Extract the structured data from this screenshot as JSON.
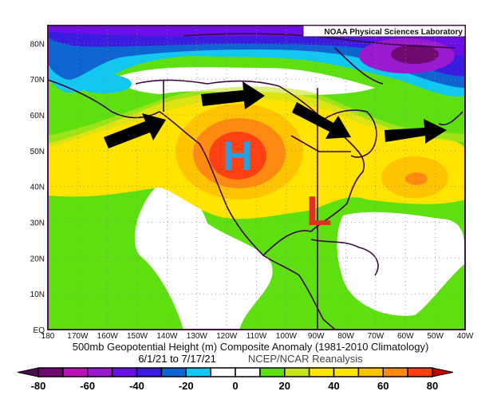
{
  "credit": "NOAA Physical Sciences Laboratory",
  "title": "500mb Geopotential Height (m) Composite Anomaly (1981-2010 Climatology)",
  "date_range": "6/1/21  to 7/17/21",
  "source": "NCEP/NCAR Reanalysis",
  "annotations": {
    "high": "H",
    "low": "L"
  },
  "chart_data": {
    "type": "heatmap",
    "variable": "500mb geopotential height anomaly (m)",
    "lon_ticks": [
      "180",
      "170W",
      "160W",
      "150W",
      "140W",
      "130W",
      "120W",
      "110W",
      "100W",
      "90W",
      "80W",
      "70W",
      "60W",
      "50W",
      "40W"
    ],
    "lat_ticks": [
      "EQ",
      "10N",
      "20N",
      "30N",
      "40N",
      "50N",
      "60N",
      "70N",
      "80N"
    ],
    "lon_range": [
      -180,
      -40
    ],
    "lat_range": [
      0,
      85
    ],
    "colorbar": {
      "labels": [
        "-80",
        "-60",
        "-40",
        "-20",
        "0",
        "20",
        "40",
        "60",
        "80"
      ],
      "boundaries": [
        -80,
        -70,
        -60,
        -50,
        -40,
        -30,
        -20,
        -10,
        0,
        10,
        20,
        30,
        40,
        50,
        60,
        70,
        80
      ],
      "colors": [
        "#6e0a70",
        "#b812b8",
        "#9a1ad0",
        "#6a10e6",
        "#3a1ce0",
        "#0e64d0",
        "#12c8f0",
        "#ffffff",
        "#ffffff",
        "#5ee010",
        "#c8e41e",
        "#ffe400",
        "#ffe400",
        "#ffc400",
        "#ff8a12",
        "#ff4012"
      ],
      "under_color": "#4a1050",
      "over_color": "#c00000"
    },
    "features": [
      {
        "label": "H",
        "type": "ridge",
        "lon": -118,
        "lat": 49,
        "anomaly_max": 70
      },
      {
        "label": "L",
        "type": "trough",
        "lon": -90,
        "lat": 33
      },
      {
        "type": "positive anomaly",
        "lon": -55,
        "lat": 42,
        "anomaly_max": 60
      }
    ],
    "flow_arrows": 4
  }
}
